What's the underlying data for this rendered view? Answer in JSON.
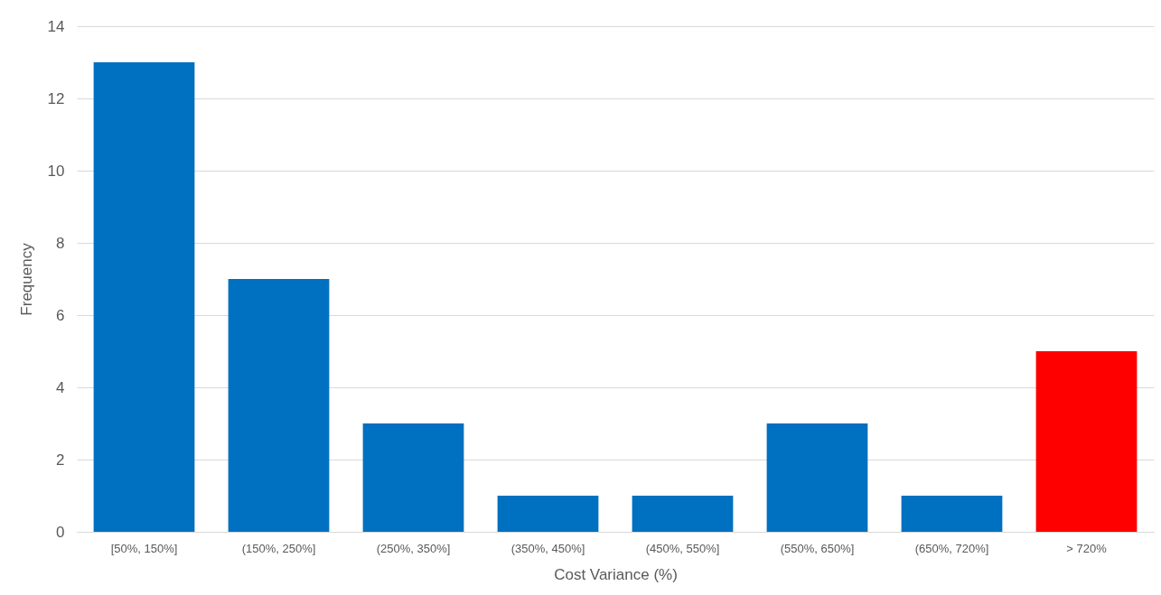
{
  "chart_data": {
    "type": "bar",
    "xlabel": "Cost Variance (%)",
    "ylabel": "Frequency",
    "categories": [
      "[50%, 150%]",
      "(150%, 250%]",
      "(250%, 350%]",
      "(350%, 450%]",
      "(450%, 550%]",
      "(550%, 650%]",
      "(650%, 720%]",
      "> 720%"
    ],
    "values": [
      13,
      7,
      3,
      1,
      1,
      3,
      1,
      5
    ],
    "colors": [
      "#0070c0",
      "#0070c0",
      "#0070c0",
      "#0070c0",
      "#0070c0",
      "#0070c0",
      "#0070c0",
      "#ff0000"
    ],
    "ylim": [
      0,
      14
    ],
    "yticks": [
      0,
      2,
      4,
      6,
      8,
      10,
      12,
      14
    ],
    "grid": "y"
  }
}
